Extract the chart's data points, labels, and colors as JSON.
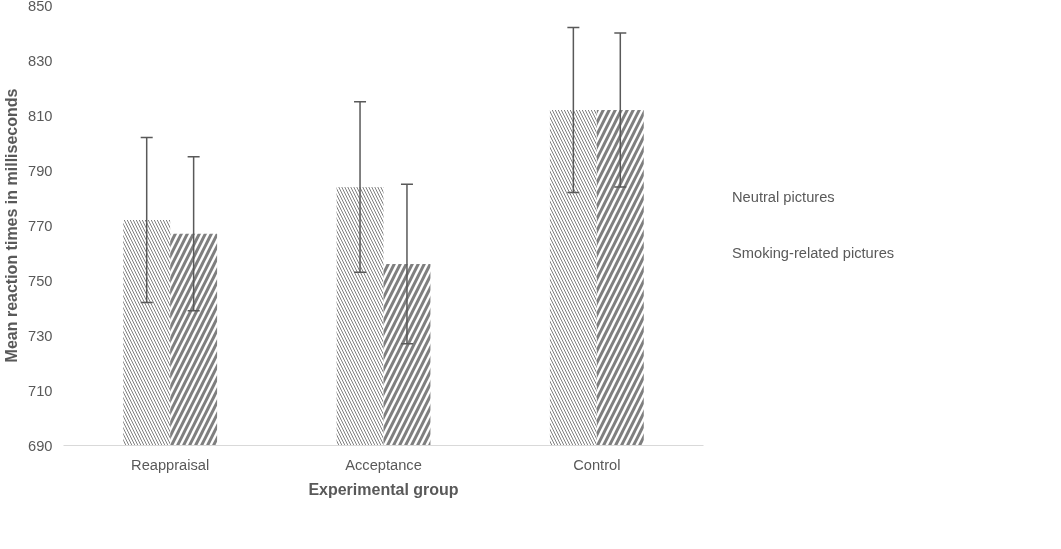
{
  "chart_data": {
    "type": "bar",
    "xlabel": "Experimental group",
    "ylabel": "Mean reaction times in milliseconds",
    "categories": [
      "Reappraisal",
      "Acceptance",
      "Control"
    ],
    "series": [
      {
        "name": "Neutral pictures",
        "color": "#7f7f7f",
        "values": [
          772,
          784,
          812
        ],
        "errors": [
          30,
          31,
          30
        ]
      },
      {
        "name": "Smoking-related pictures",
        "color": "#7f7f7f",
        "values": [
          767,
          756,
          812
        ],
        "errors": [
          28,
          29,
          28
        ]
      }
    ],
    "ylim": [
      690,
      850
    ],
    "yticks": [
      690,
      710,
      730,
      750,
      770,
      790,
      810,
      830,
      850
    ],
    "grid": false,
    "legend": "right"
  }
}
